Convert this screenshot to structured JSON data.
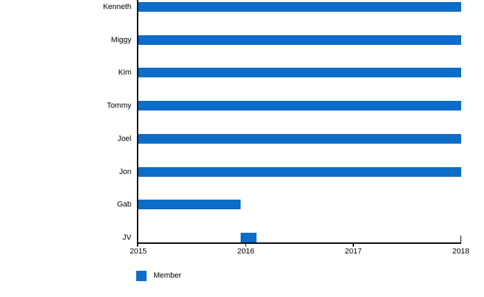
{
  "chart_data": {
    "type": "bar",
    "orientation": "horizontal",
    "title": "",
    "xlabel": "",
    "ylabel": "",
    "grid": false,
    "background": "#ffffff",
    "axis_color": "#000000",
    "text_color": "#000000",
    "xlim": [
      2015,
      2018
    ],
    "x_ticks": [
      "2015",
      "2016",
      "2017",
      "2018"
    ],
    "categories": [
      "Kenneth",
      "Miggy",
      "Kim",
      "Tommy",
      "Joel",
      "Jon",
      "Gab",
      "JV"
    ],
    "series": [
      {
        "name": "Member",
        "color": "#0d6cc8",
        "ranges": [
          [
            2015,
            2018
          ],
          [
            2015,
            2018
          ],
          [
            2015,
            2018
          ],
          [
            2015,
            2018
          ],
          [
            2015,
            2018
          ],
          [
            2015,
            2018
          ],
          [
            2015,
            2015.95
          ],
          [
            2015.95,
            2016.1
          ]
        ]
      }
    ],
    "legend": {
      "position": "bottom-left",
      "entries": [
        {
          "label": "Member",
          "color": "#0d6cc8"
        }
      ]
    }
  }
}
